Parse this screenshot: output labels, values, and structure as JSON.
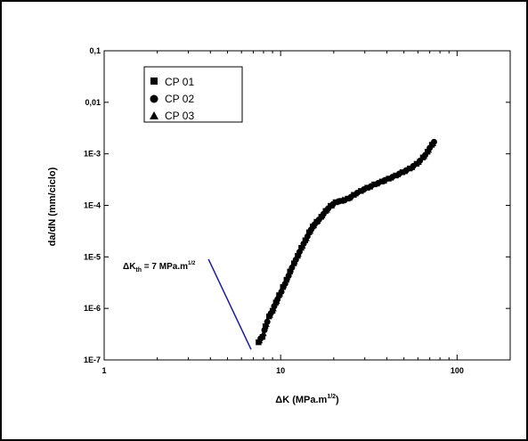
{
  "chart_data": {
    "type": "scatter",
    "xlabel": "ΔK (MPa.m",
    "xlabel_sup": "1/2",
    "xlabel_close": ")",
    "ylabel": "da/dN (mm/ciclo)",
    "x_scale": "log",
    "y_scale": "log",
    "xlim": [
      1,
      200
    ],
    "ylim": [
      1e-07,
      0.1
    ],
    "x_ticks": [
      {
        "value": 1,
        "label": "1"
      },
      {
        "value": 10,
        "label": "10"
      },
      {
        "value": 100,
        "label": "100"
      }
    ],
    "y_ticks": [
      {
        "value": 1e-07,
        "label": "1E-7"
      },
      {
        "value": 1e-06,
        "label": "1E-6"
      },
      {
        "value": 1e-05,
        "label": "1E-5"
      },
      {
        "value": 0.0001,
        "label": "1E-4"
      },
      {
        "value": 0.001,
        "label": "1E-3"
      },
      {
        "value": 0.01,
        "label": "0,01"
      },
      {
        "value": 0.1,
        "label": "0,1"
      }
    ],
    "grid": false,
    "legend_position": "top-left",
    "series": [
      {
        "name": "CP 01",
        "marker": "square",
        "points": [
          [
            7.5,
            2.2e-07
          ],
          [
            7.9,
            2.8e-07
          ],
          [
            8.2,
            4.5e-07
          ],
          [
            8.6,
            7e-07
          ],
          [
            9.0,
            9e-07
          ],
          [
            9.4,
            1.3e-06
          ],
          [
            9.8,
            1.8e-06
          ],
          [
            10.3,
            2.6e-06
          ],
          [
            10.8,
            3.6e-06
          ],
          [
            11.3,
            5.2e-06
          ],
          [
            11.9,
            7.5e-06
          ],
          [
            12.5,
            1.05e-05
          ],
          [
            13.1,
            1.5e-05
          ],
          [
            13.8,
            2.1e-05
          ],
          [
            14.5,
            3e-05
          ],
          [
            15.2,
            3.9e-05
          ],
          [
            16.0,
            4.8e-05
          ],
          [
            17.0,
            6e-05
          ],
          [
            18.0,
            7.8e-05
          ],
          [
            19.2,
            9.8e-05
          ],
          [
            20.5,
            0.000115
          ],
          [
            22.0,
            0.000122
          ],
          [
            24.0,
            0.000135
          ],
          [
            26.0,
            0.00016
          ],
          [
            28.5,
            0.00019
          ],
          [
            31.0,
            0.00022
          ],
          [
            34.0,
            0.000255
          ],
          [
            37.5,
            0.00029
          ],
          [
            41.0,
            0.00033
          ],
          [
            45.0,
            0.00038
          ],
          [
            49.0,
            0.00044
          ],
          [
            54.0,
            0.00052
          ],
          [
            59.0,
            0.00064
          ],
          [
            64.0,
            0.00085
          ],
          [
            68.0,
            0.0011
          ],
          [
            72.0,
            0.0015
          ]
        ]
      },
      {
        "name": "CP 02",
        "marker": "circle",
        "points": [
          [
            7.7,
            2.6e-07
          ],
          [
            8.1,
            3.8e-07
          ],
          [
            8.4,
            5.5e-07
          ],
          [
            8.8,
            8e-07
          ],
          [
            9.2,
            1.1e-06
          ],
          [
            9.6,
            1.5e-06
          ],
          [
            10.1,
            2.1e-06
          ],
          [
            10.6,
            3e-06
          ],
          [
            11.1,
            4.3e-06
          ],
          [
            11.6,
            6.2e-06
          ],
          [
            12.2,
            8.8e-06
          ],
          [
            12.8,
            1.25e-05
          ],
          [
            13.5,
            1.8e-05
          ],
          [
            14.2,
            2.5e-05
          ],
          [
            14.9,
            3.4e-05
          ],
          [
            15.6,
            4.3e-05
          ],
          [
            16.5,
            5.3e-05
          ],
          [
            17.5,
            6.8e-05
          ],
          [
            18.6,
            8.7e-05
          ],
          [
            19.8,
            0.000105
          ],
          [
            21.2,
            0.000118
          ],
          [
            23.0,
            0.000125
          ],
          [
            25.0,
            0.000145
          ],
          [
            27.2,
            0.000175
          ],
          [
            29.7,
            0.000205
          ],
          [
            32.5,
            0.000235
          ],
          [
            35.7,
            0.00027
          ],
          [
            39.0,
            0.00031
          ],
          [
            43.0,
            0.000355
          ],
          [
            47.0,
            0.00041
          ],
          [
            51.5,
            0.00048
          ],
          [
            56.5,
            0.00058
          ],
          [
            61.5,
            0.00073
          ],
          [
            66.0,
            0.00095
          ],
          [
            70.0,
            0.0013
          ],
          [
            74.0,
            0.0017
          ]
        ]
      },
      {
        "name": "CP 03",
        "marker": "triangle",
        "points": [
          [
            7.6,
            2.4e-07
          ],
          [
            8.0,
            3.3e-07
          ],
          [
            8.3,
            5e-07
          ],
          [
            8.7,
            7.5e-07
          ],
          [
            9.1,
            1e-06
          ],
          [
            9.5,
            1.4e-06
          ],
          [
            9.9,
            1.95e-06
          ],
          [
            10.4,
            2.8e-06
          ],
          [
            10.9,
            4e-06
          ],
          [
            11.4,
            5.7e-06
          ],
          [
            12.0,
            8.2e-06
          ],
          [
            12.6,
            1.15e-05
          ],
          [
            13.3,
            1.65e-05
          ],
          [
            14.0,
            2.3e-05
          ],
          [
            14.7,
            3.2e-05
          ],
          [
            15.4,
            4.1e-05
          ],
          [
            16.2,
            5e-05
          ],
          [
            17.2,
            6.4e-05
          ],
          [
            18.3,
            8.2e-05
          ],
          [
            19.5,
            0.0001
          ],
          [
            21.0,
            0.00012
          ],
          [
            22.5,
            0.00013
          ],
          [
            24.5,
            0.00014
          ],
          [
            26.5,
            0.00017
          ],
          [
            29.0,
            0.0002
          ],
          [
            32.0,
            0.00023
          ],
          [
            35.0,
            0.000265
          ],
          [
            38.5,
            0.0003
          ],
          [
            42.0,
            0.000345
          ],
          [
            46.0,
            0.0004
          ],
          [
            50.5,
            0.00046
          ],
          [
            55.5,
            0.00055
          ],
          [
            60.5,
            0.00069
          ],
          [
            65.0,
            0.0009
          ],
          [
            69.0,
            0.0012
          ],
          [
            73.0,
            0.0016
          ]
        ]
      }
    ],
    "annotation": {
      "text_prefix": "ΔK",
      "text_sub": "th",
      "text_main": " = 7 MPa.m",
      "text_sup": "1/2",
      "line_color": "#1a1aa6",
      "line_from": [
        3.9,
        9e-06
      ],
      "line_to": [
        6.8,
        1.6e-07
      ]
    }
  }
}
